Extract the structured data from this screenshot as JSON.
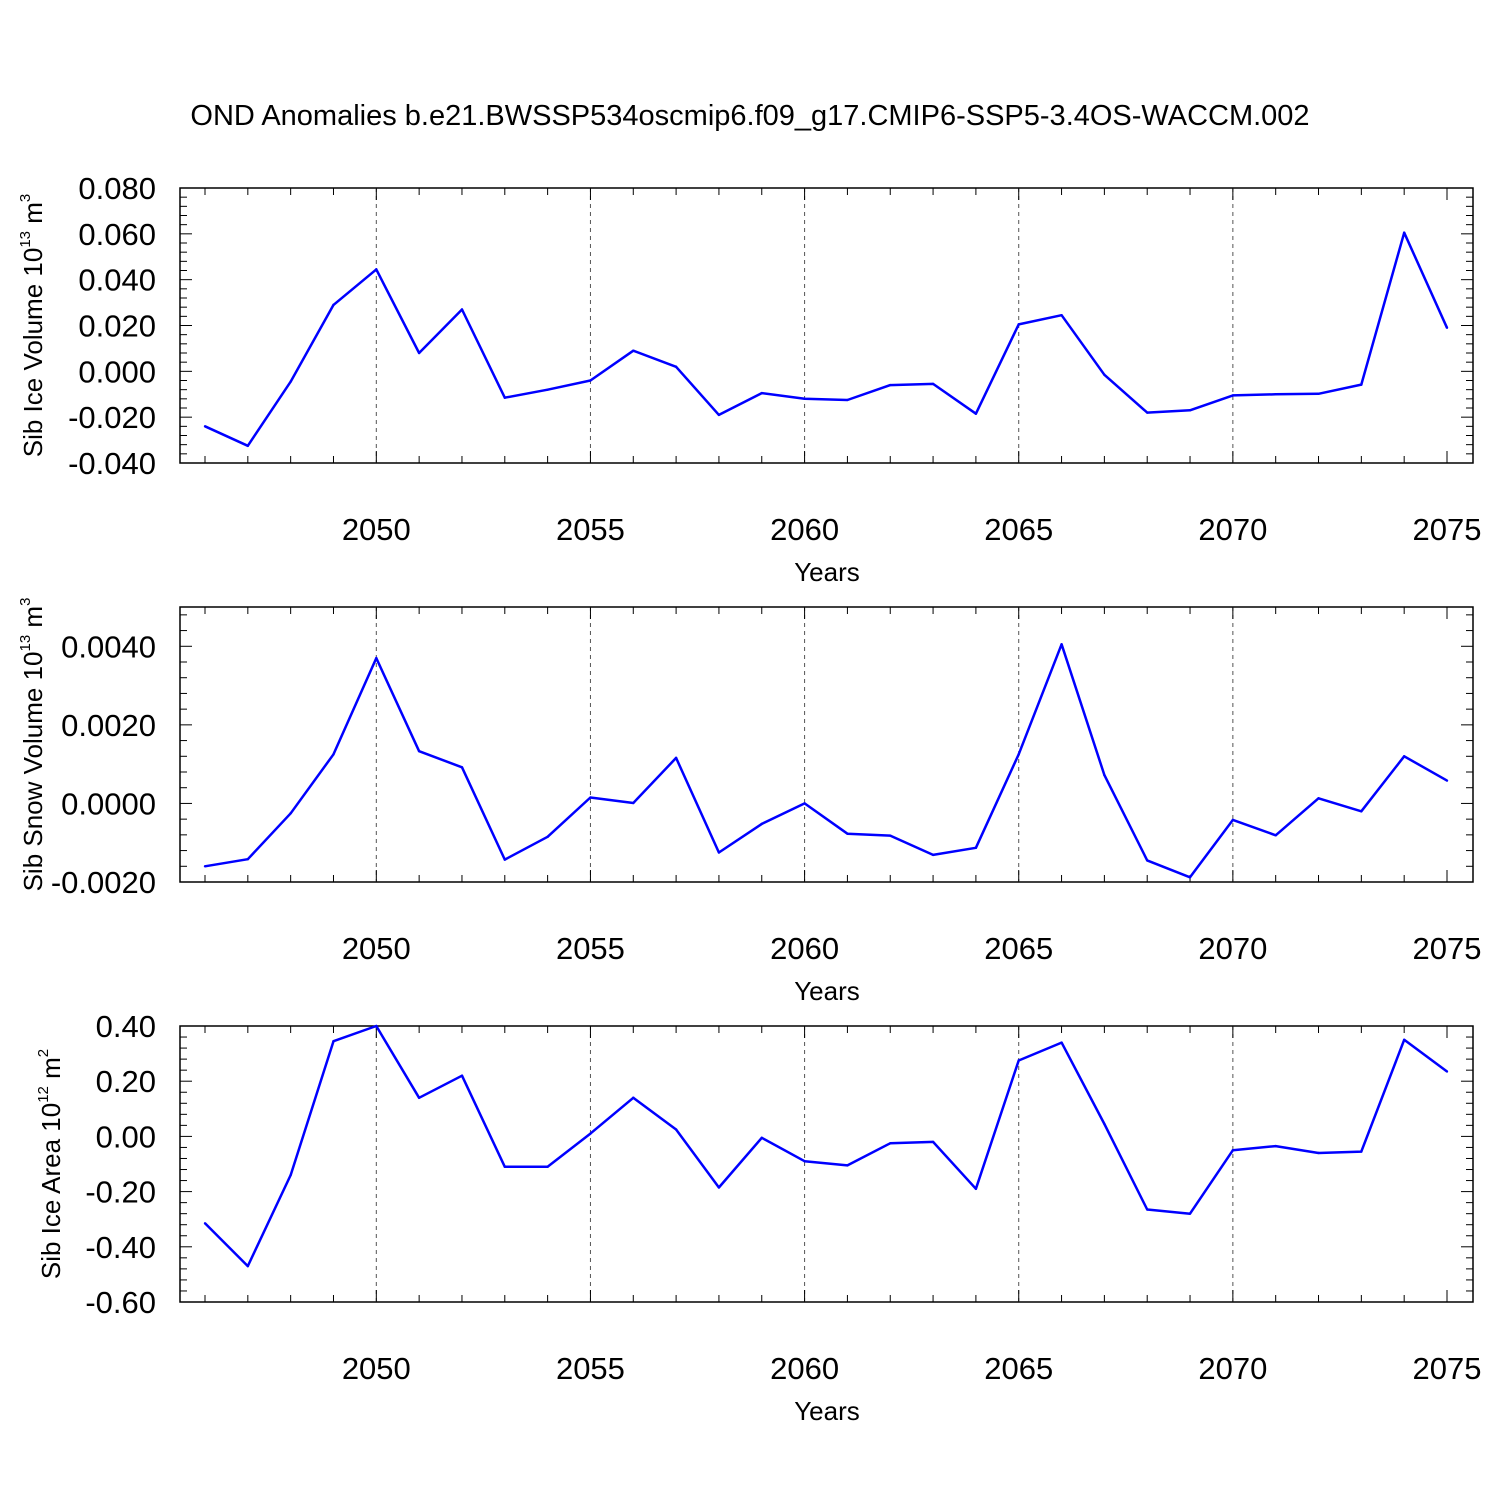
{
  "figure_title": "OND Anomalies b.e21.BWSSP534oscmip6.f09_g17.CMIP6-SSP5-3.4OS-WACCM.002",
  "colors": {
    "line": "#0000ff",
    "axis": "#000000",
    "grid": "#555555"
  },
  "chart_data": [
    {
      "type": "line",
      "ylabel": {
        "text": "Sib Ice Volume 10",
        "sup": "13",
        "unit": " m",
        "unit_sup": "3"
      },
      "xlabel": "Years",
      "xlim": [
        2046,
        2075
      ],
      "ylim": [
        -0.04,
        0.08
      ],
      "yticks": [
        {
          "v": 0.08,
          "label": "0.080"
        },
        {
          "v": 0.06,
          "label": "0.060"
        },
        {
          "v": 0.04,
          "label": "0.040"
        },
        {
          "v": 0.02,
          "label": "0.020"
        },
        {
          "v": 0.0,
          "label": "0.000"
        },
        {
          "v": -0.02,
          "label": "-0.020"
        },
        {
          "v": -0.04,
          "label": "-0.040"
        }
      ],
      "xticks": [
        {
          "v": 2050,
          "label": "2050"
        },
        {
          "v": 2055,
          "label": "2055"
        },
        {
          "v": 2060,
          "label": "2060"
        },
        {
          "v": 2065,
          "label": "2065"
        },
        {
          "v": 2070,
          "label": "2070"
        },
        {
          "v": 2075,
          "label": "2075"
        }
      ],
      "x": [
        2046,
        2047,
        2048,
        2049,
        2050,
        2051,
        2052,
        2053,
        2054,
        2055,
        2056,
        2057,
        2058,
        2059,
        2060,
        2061,
        2062,
        2063,
        2064,
        2065,
        2066,
        2067,
        2068,
        2069,
        2070,
        2071,
        2072,
        2073,
        2074,
        2075
      ],
      "values": [
        -0.024,
        -0.0325,
        -0.0045,
        0.029,
        0.0445,
        0.008,
        0.027,
        -0.0115,
        -0.008,
        -0.004,
        0.009,
        0.002,
        -0.019,
        -0.0095,
        -0.012,
        -0.0125,
        -0.006,
        -0.0055,
        -0.0185,
        0.0205,
        0.0245,
        -0.0015,
        -0.018,
        -0.017,
        -0.0105,
        -0.01,
        -0.0098,
        -0.0058,
        0.0605,
        0.019
      ]
    },
    {
      "type": "line",
      "ylabel": {
        "text": "Sib Snow Volume 10",
        "sup": "13",
        "unit": " m",
        "unit_sup": "3"
      },
      "xlabel": "Years",
      "xlim": [
        2046,
        2075
      ],
      "ylim": [
        -0.002,
        0.005
      ],
      "yticks": [
        {
          "v": 0.004,
          "label": "0.0040"
        },
        {
          "v": 0.002,
          "label": "0.0020"
        },
        {
          "v": 0.0,
          "label": "0.0000"
        },
        {
          "v": -0.002,
          "label": "-0.0020"
        }
      ],
      "xticks": [
        {
          "v": 2050,
          "label": "2050"
        },
        {
          "v": 2055,
          "label": "2055"
        },
        {
          "v": 2060,
          "label": "2060"
        },
        {
          "v": 2065,
          "label": "2065"
        },
        {
          "v": 2070,
          "label": "2070"
        },
        {
          "v": 2075,
          "label": "2075"
        }
      ],
      "x": [
        2046,
        2047,
        2048,
        2049,
        2050,
        2051,
        2052,
        2053,
        2054,
        2055,
        2056,
        2057,
        2058,
        2059,
        2060,
        2061,
        2062,
        2063,
        2064,
        2065,
        2066,
        2067,
        2068,
        2069,
        2070,
        2071,
        2072,
        2073,
        2074,
        2075
      ],
      "values": [
        -0.0016,
        -0.00142,
        -0.00025,
        0.00125,
        0.0037,
        0.00133,
        0.00092,
        -0.00143,
        -0.00085,
        0.00015,
        1e-05,
        0.00116,
        -0.00125,
        -0.00052,
        0.0,
        -0.00077,
        -0.00082,
        -0.00131,
        -0.00113,
        0.00125,
        0.00405,
        0.00072,
        -0.00145,
        -0.00188,
        -0.00042,
        -0.00081,
        0.00013,
        -0.0002,
        0.0012,
        0.00058
      ]
    },
    {
      "type": "line",
      "ylabel": {
        "text": "Sib Ice Area 10",
        "sup": "12",
        "unit": " m",
        "unit_sup": "2"
      },
      "xlabel": "Years",
      "xlim": [
        2046,
        2075
      ],
      "ylim": [
        -0.6,
        0.4
      ],
      "yticks": [
        {
          "v": 0.4,
          "label": "0.40"
        },
        {
          "v": 0.2,
          "label": "0.20"
        },
        {
          "v": 0.0,
          "label": "0.00"
        },
        {
          "v": -0.2,
          "label": "-0.20"
        },
        {
          "v": -0.4,
          "label": "-0.40"
        },
        {
          "v": -0.6,
          "label": "-0.60"
        }
      ],
      "xticks": [
        {
          "v": 2050,
          "label": "2050"
        },
        {
          "v": 2055,
          "label": "2055"
        },
        {
          "v": 2060,
          "label": "2060"
        },
        {
          "v": 2065,
          "label": "2065"
        },
        {
          "v": 2070,
          "label": "2070"
        },
        {
          "v": 2075,
          "label": "2075"
        }
      ],
      "x": [
        2046,
        2047,
        2048,
        2049,
        2050,
        2051,
        2052,
        2053,
        2054,
        2055,
        2056,
        2057,
        2058,
        2059,
        2060,
        2061,
        2062,
        2063,
        2064,
        2065,
        2066,
        2067,
        2068,
        2069,
        2070,
        2071,
        2072,
        2073,
        2074,
        2075
      ],
      "values": [
        -0.315,
        -0.47,
        -0.14,
        0.345,
        0.4,
        0.14,
        0.22,
        -0.11,
        -0.11,
        0.01,
        0.14,
        0.025,
        -0.185,
        -0.005,
        -0.09,
        -0.105,
        -0.025,
        -0.02,
        -0.19,
        0.275,
        0.34,
        0.045,
        -0.265,
        -0.28,
        -0.05,
        -0.035,
        -0.06,
        -0.055,
        0.35,
        0.235
      ]
    }
  ]
}
